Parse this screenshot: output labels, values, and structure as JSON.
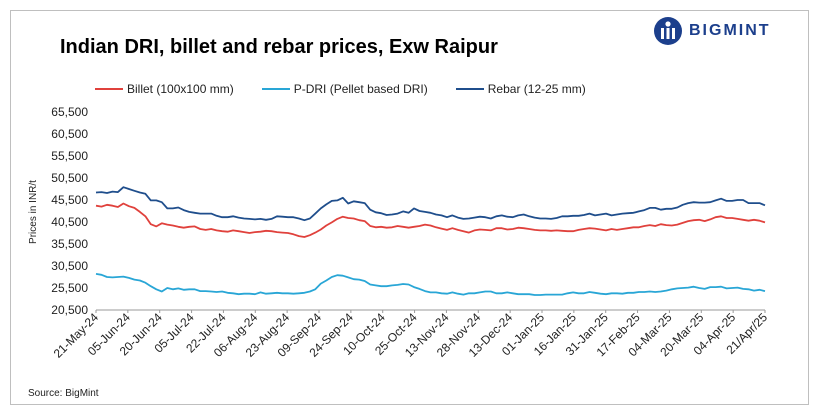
{
  "header": {
    "title": "Indian DRI, billet and rebar prices, Exw  Raipur",
    "logo_text": "BIGMINT"
  },
  "source": "Source: BigMint",
  "colors": {
    "billet": "#e0413c",
    "pdri": "#29a6d6",
    "rebar": "#1f4e8c",
    "logo": "#1c3f8c"
  },
  "chart_data": {
    "type": "line",
    "title": "Indian DRI, billet and rebar prices, Exw  Raipur",
    "xlabel": "",
    "ylabel": "Prices in INR/t",
    "ylim": [
      20500,
      65500
    ],
    "yticks": [
      "20,500",
      "25,500",
      "30,500",
      "35,500",
      "40,500",
      "45,500",
      "50,500",
      "55,500",
      "60,500",
      "65,500"
    ],
    "ytick_values": [
      20500,
      25500,
      30500,
      35500,
      40500,
      45500,
      50500,
      55500,
      60500,
      65500
    ],
    "xticks": [
      "21-May-24",
      "05-Jun-24",
      "20-Jun-24",
      "05-Jul-24",
      "22-Jul-24",
      "06-Aug-24",
      "23-Aug-24",
      "09-Sep-24",
      "24-Sep-24",
      "10-Oct-24",
      "25-Oct-24",
      "13-Nov-24",
      "28-Nov-24",
      "13-Dec-24",
      "01-Jan-25",
      "16-Jan-25",
      "31-Jan-25",
      "17-Feb-25",
      "04-Mar-25",
      "20-Mar-25",
      "04-Apr-25",
      "21/Apr/25"
    ],
    "grid": false,
    "legend": "top",
    "series": [
      {
        "name": "Billet (100x100 mm)",
        "key": "billet",
        "values": [
          44200,
          44000,
          44400,
          44200,
          43900,
          44700,
          44100,
          43700,
          42800,
          41800,
          40000,
          39500,
          40200,
          39900,
          39700,
          39400,
          39200,
          39400,
          39500,
          38900,
          38700,
          38900,
          38600,
          38400,
          38300,
          38600,
          38400,
          38200,
          38000,
          38200,
          38300,
          38500,
          38400,
          38200,
          38100,
          38000,
          37700,
          37300,
          37100,
          37500,
          38100,
          38800,
          39700,
          40400,
          41200,
          41700,
          41400,
          41300,
          40900,
          40700,
          39600,
          39300,
          39400,
          39200,
          39300,
          39600,
          39400,
          39200,
          39400,
          39600,
          39900,
          39700,
          39300,
          39000,
          38700,
          39100,
          38700,
          38400,
          38100,
          38600,
          38800,
          38700,
          38600,
          39100,
          39100,
          38800,
          38900,
          39200,
          39100,
          38900,
          38700,
          38600,
          38600,
          38500,
          38600,
          38500,
          38400,
          38400,
          38700,
          38900,
          39100,
          39000,
          38800,
          38600,
          38900,
          38700,
          38900,
          39100,
          39300,
          39300,
          39600,
          39800,
          39600,
          40000,
          39800,
          39700,
          39900,
          40300,
          40700,
          40900,
          41000,
          40700,
          41100,
          41600,
          41800,
          41400,
          41400,
          41200,
          41000,
          40800,
          41000,
          40800,
          40400
        ]
      },
      {
        "name": "P-DRI (Pellet based DRI)",
        "key": "pdri",
        "values": [
          28700,
          28500,
          28000,
          27900,
          28000,
          28100,
          27800,
          27400,
          27200,
          26700,
          25900,
          25200,
          24700,
          25500,
          25200,
          25400,
          25100,
          25200,
          25200,
          24800,
          24800,
          24700,
          24600,
          24700,
          24400,
          24300,
          24100,
          24200,
          24200,
          24100,
          24500,
          24200,
          24300,
          24400,
          24300,
          24300,
          24200,
          24300,
          24400,
          24700,
          25200,
          26500,
          27200,
          28000,
          28400,
          28300,
          27900,
          27500,
          27400,
          27100,
          26300,
          26100,
          25900,
          25900,
          26100,
          26200,
          26400,
          26300,
          25700,
          25300,
          24800,
          24500,
          24500,
          24300,
          24200,
          24500,
          24200,
          24000,
          24300,
          24300,
          24500,
          24700,
          24700,
          24300,
          24300,
          24500,
          24300,
          24100,
          24100,
          24100,
          23900,
          23900,
          24000,
          24000,
          24000,
          24000,
          24300,
          24500,
          24300,
          24300,
          24600,
          24400,
          24200,
          24100,
          24300,
          24300,
          24200,
          24400,
          24400,
          24600,
          24600,
          24700,
          24600,
          24700,
          24900,
          25200,
          25400,
          25500,
          25600,
          25800,
          25500,
          25300,
          25700,
          25700,
          25800,
          25400,
          25500,
          25600,
          25300,
          25200,
          24900,
          25100,
          24800
        ]
      },
      {
        "name": "Rebar (12-25 mm)",
        "key": "rebar",
        "values": [
          47200,
          47300,
          47100,
          47400,
          47300,
          48400,
          48000,
          47600,
          47200,
          46900,
          45400,
          45400,
          45000,
          43600,
          43600,
          43800,
          43200,
          42800,
          42600,
          42400,
          42400,
          42400,
          41900,
          41600,
          41600,
          41800,
          41500,
          41300,
          41200,
          41100,
          41200,
          41000,
          41200,
          41800,
          41700,
          41600,
          41600,
          41300,
          40900,
          41300,
          42400,
          43600,
          44500,
          45300,
          45400,
          46000,
          44700,
          45200,
          45000,
          44800,
          43300,
          42700,
          42500,
          42100,
          42200,
          42400,
          42900,
          42600,
          43600,
          43000,
          42800,
          42600,
          42200,
          42000,
          41600,
          42000,
          41500,
          41200,
          41300,
          41500,
          41700,
          41600,
          41300,
          41800,
          42000,
          41700,
          41600,
          42000,
          42200,
          41800,
          41500,
          41300,
          41300,
          41200,
          41400,
          41800,
          41800,
          41900,
          41900,
          42100,
          42400,
          42000,
          42200,
          42400,
          42000,
          42200,
          42400,
          42500,
          42600,
          42900,
          43200,
          43700,
          43700,
          43300,
          43500,
          43500,
          43800,
          44400,
          44800,
          45000,
          44900,
          44900,
          45000,
          45400,
          45800,
          45300,
          45300,
          45500,
          45500,
          44800,
          44800,
          44800,
          44300
        ]
      }
    ]
  }
}
